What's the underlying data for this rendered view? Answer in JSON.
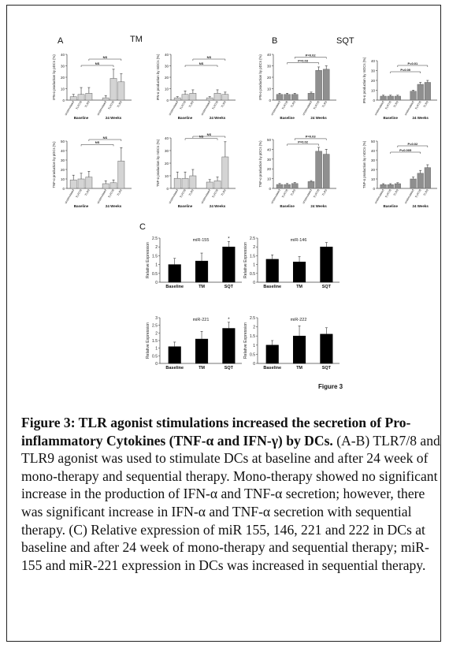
{
  "figure": {
    "panel_a_label": "A",
    "panel_a_title": "TM",
    "panel_b_label": "B",
    "panel_b_title": "SQT",
    "panel_c_label": "C",
    "figure_label": "Figure 3"
  },
  "caption": {
    "bold": "Figure 3: TLR agonist stimulations increased the secretion of Pro-inflammatory Cytokines (TNF-α and IFN-γ) by DCs.",
    "text": " (A-B) TLR7/8 and TLR9 agonist was used to stimulate DCs at baseline and after 24 week of mono-therapy and sequential therapy. Mono-therapy showed no significant increase in the production of IFN-α and TNF-α secretion; however, there was significant increase in IFN-α and TNF-α secretion with sequential therapy. (C) Relative expression of miR 155, 146, 221 and 222 in DCs at baseline and after 24 week of mono-therapy and sequential therapy; miR-155 and miR-221 expression in DCs was increased in sequential therapy."
  },
  "chart_data": [
    {
      "id": "a_ifn_pdc",
      "type": "bar",
      "ylabel": "IFN-α production by pDCs (%)",
      "ylim": [
        0,
        40
      ],
      "yticks": [
        0,
        10,
        20,
        30,
        40
      ],
      "categories": [
        "unstimulated",
        "TLR7/8",
        "TLR9",
        "unstimulated",
        "TLR7/8",
        "TLR9"
      ],
      "groups": [
        "Baseline",
        "24 Weeks"
      ],
      "values": [
        3,
        5,
        6,
        2,
        19,
        16
      ],
      "errors": [
        2,
        6,
        5,
        2,
        8,
        7
      ],
      "color": "#d4d4d4",
      "annotations": [
        {
          "text": "NS",
          "from": 1,
          "to": 4
        },
        {
          "text": "NS",
          "from": 2,
          "to": 5
        }
      ]
    },
    {
      "id": "a_ifn_mdc",
      "type": "bar",
      "ylabel": "IFN-α production by mDCs (%)",
      "ylim": [
        0,
        40
      ],
      "yticks": [
        0,
        10,
        20,
        30,
        40
      ],
      "categories": [
        "unstimulated",
        "TLR7/8",
        "TLR9",
        "unstimulated",
        "TLR7/8",
        "TLR9"
      ],
      "groups": [
        "Baseline",
        "24 Weeks"
      ],
      "values": [
        2,
        5,
        6,
        2,
        6,
        5
      ],
      "errors": [
        1,
        3,
        3,
        1,
        3,
        2
      ],
      "color": "#d4d4d4",
      "annotations": [
        {
          "text": "NS",
          "from": 1,
          "to": 4
        },
        {
          "text": "NS",
          "from": 2,
          "to": 5
        }
      ]
    },
    {
      "id": "b_ifn_pdc",
      "type": "bar",
      "ylabel": "IFN-α production by pDCs (%)",
      "ylim": [
        0,
        40
      ],
      "yticks": [
        0,
        10,
        20,
        30,
        40
      ],
      "categories": [
        "unstimulated",
        "TLR7/8",
        "TLR9",
        "unstimulated",
        "TLR7/8",
        "TLR9"
      ],
      "groups": [
        "Baseline",
        "24 Weeks"
      ],
      "values": [
        5,
        5,
        5,
        6,
        26,
        27
      ],
      "errors": [
        1,
        1,
        1,
        1,
        3,
        3
      ],
      "color": "#8f8f8f",
      "annotations": [
        {
          "text": "P=0.03",
          "from": 1,
          "to": 4
        },
        {
          "text": "P=0.02",
          "from": 2,
          "to": 5
        }
      ]
    },
    {
      "id": "b_ifn_mdc",
      "type": "bar",
      "ylabel": "IFN-α production by mDCs (%)",
      "ylim": [
        0,
        40
      ],
      "yticks": [
        0,
        10,
        20,
        30,
        40
      ],
      "categories": [
        "unstimulated",
        "TLR7/8",
        "TLR9",
        "unstimulated",
        "TLR7/8",
        "TLR9"
      ],
      "groups": [
        "Baseline",
        "24 Weeks"
      ],
      "values": [
        4,
        4,
        4,
        9,
        16,
        18
      ],
      "errors": [
        1,
        1,
        1,
        1,
        2,
        2
      ],
      "color": "#8f8f8f",
      "annotations": [
        {
          "text": "P=0.00",
          "from": 1,
          "to": 4
        },
        {
          "text": "P=0.01",
          "from": 2,
          "to": 5
        }
      ]
    },
    {
      "id": "a_tnf_pdc",
      "type": "bar",
      "ylabel": "TNF-α production by pDCs (%)",
      "ylim": [
        0,
        50
      ],
      "yticks": [
        0,
        10,
        20,
        30,
        40,
        50
      ],
      "categories": [
        "unstimulated",
        "TLR7/8",
        "TLR9",
        "unstimulated",
        "TLR7/8",
        "TLR9"
      ],
      "groups": [
        "Baseline",
        "24 Weeks"
      ],
      "values": [
        9,
        10,
        12,
        5,
        6,
        29
      ],
      "errors": [
        5,
        6,
        6,
        3,
        3,
        14
      ],
      "color": "#d4d4d4",
      "annotations": [
        {
          "text": "NS",
          "from": 1,
          "to": 4
        },
        {
          "text": "NS",
          "from": 2,
          "to": 5
        }
      ]
    },
    {
      "id": "a_tnf_mdc",
      "type": "bar",
      "ylabel": "TNF-α production by mDCs (%)",
      "ylim": [
        0,
        40
      ],
      "yticks": [
        0,
        10,
        20,
        30,
        40
      ],
      "categories": [
        "unstimulated",
        "TLR7/8",
        "TLR9",
        "unstimulated",
        "TLR7/8",
        "TLR9"
      ],
      "groups": [
        "Baseline",
        "24 Weeks"
      ],
      "values": [
        8,
        8,
        10,
        5,
        6,
        25
      ],
      "errors": [
        5,
        5,
        5,
        2,
        3,
        12
      ],
      "color": "#d4d4d4",
      "annotations": [
        {
          "text": "NS",
          "from": 1,
          "to": 4
        },
        {
          "text": "NS",
          "from": 2,
          "to": 5
        }
      ]
    },
    {
      "id": "b_tnf_pdc",
      "type": "bar",
      "ylabel": "TNF-α production by pDCs (%)",
      "ylim": [
        0,
        50
      ],
      "yticks": [
        0,
        10,
        20,
        30,
        40,
        50
      ],
      "categories": [
        "unstimulated",
        "TLR7/8",
        "TLR9",
        "unstimulated",
        "TLR7/8",
        "TLR9"
      ],
      "groups": [
        "Baseline",
        "24 Weeks"
      ],
      "values": [
        4,
        4,
        5,
        7,
        38,
        35
      ],
      "errors": [
        1,
        1,
        1,
        1,
        4,
        5
      ],
      "color": "#8f8f8f",
      "annotations": [
        {
          "text": "P=0.02",
          "from": 1,
          "to": 4
        },
        {
          "text": "P=0.03",
          "from": 2,
          "to": 5
        }
      ]
    },
    {
      "id": "b_tnf_mdc",
      "type": "bar",
      "ylabel": "TNF-α production by mDCs (%)",
      "ylim": [
        0,
        50
      ],
      "yticks": [
        0,
        10,
        20,
        30,
        40,
        50
      ],
      "categories": [
        "unstimulated",
        "TLR7/8",
        "TLR9",
        "unstimulated",
        "TLR7/8",
        "TLR9"
      ],
      "groups": [
        "Baseline",
        "24 Weeks"
      ],
      "values": [
        4,
        4,
        5,
        10,
        16,
        22
      ],
      "errors": [
        1,
        1,
        1,
        2,
        3,
        3
      ],
      "color": "#8f8f8f",
      "annotations": [
        {
          "text": "P=0.005",
          "from": 1,
          "to": 4
        },
        {
          "text": "P=0.02",
          "from": 2,
          "to": 5
        }
      ]
    },
    {
      "id": "c_mir155",
      "type": "bar",
      "title": "miR-155",
      "ylabel": "Relative Expression",
      "ylim": [
        0,
        2.5
      ],
      "yticks": [
        0,
        0.5,
        1,
        1.5,
        2,
        2.5
      ],
      "ytick_labels": [
        "0",
        "0.5",
        "1",
        "1.5",
        "2",
        "2.5"
      ],
      "categories": [
        "Baseline",
        "TM",
        "SQT"
      ],
      "values": [
        1.0,
        1.2,
        2.0
      ],
      "errors": [
        0.35,
        0.45,
        0.3
      ],
      "color": "#000000",
      "markers": [
        "",
        "",
        "*"
      ]
    },
    {
      "id": "c_mir146",
      "type": "bar",
      "title": "miR-146",
      "ylabel": "Relative Expression",
      "ylim": [
        0,
        2.5
      ],
      "yticks": [
        0,
        0.5,
        1,
        1.5,
        2,
        2.5
      ],
      "ytick_labels": [
        "0",
        "0.5",
        "1",
        "1.5",
        "2",
        "2.5"
      ],
      "categories": [
        "Baseline",
        "TM",
        "SQT"
      ],
      "values": [
        1.3,
        1.15,
        2.0
      ],
      "errors": [
        0.25,
        0.3,
        0.25
      ],
      "color": "#000000",
      "markers": [
        "",
        "",
        ""
      ]
    },
    {
      "id": "c_mir221",
      "type": "bar",
      "title": "miR-221",
      "ylabel": "Relative Expression",
      "ylim": [
        0,
        3
      ],
      "yticks": [
        0,
        0.5,
        1,
        1.5,
        2,
        2.5,
        3
      ],
      "ytick_labels": [
        "0",
        "0.5",
        "1",
        "1.5",
        "2",
        "2.5",
        "3"
      ],
      "categories": [
        "Baseline",
        "TM",
        "SQT"
      ],
      "values": [
        1.1,
        1.6,
        2.3
      ],
      "errors": [
        0.3,
        0.5,
        0.4
      ],
      "color": "#000000",
      "markers": [
        "",
        "",
        "*"
      ]
    },
    {
      "id": "c_mir222",
      "type": "bar",
      "title": "miR-222",
      "ylabel": "Relative Expression",
      "ylim": [
        0,
        2.5
      ],
      "yticks": [
        0,
        0.5,
        1,
        1.5,
        2,
        2.5
      ],
      "ytick_labels": [
        "0",
        "0.5",
        "1",
        "1.5",
        "2",
        "2.5"
      ],
      "categories": [
        "Baseline",
        "TM",
        "SQT"
      ],
      "values": [
        1.0,
        1.5,
        1.6
      ],
      "errors": [
        0.25,
        0.55,
        0.35
      ],
      "color": "#000000",
      "markers": [
        "",
        "",
        ""
      ]
    }
  ]
}
